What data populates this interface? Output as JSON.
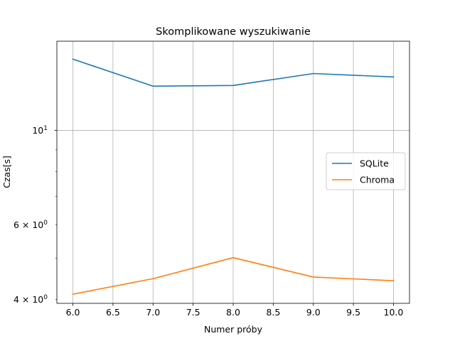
{
  "chart_data": {
    "type": "line",
    "title": "Skomplikowane wyszukiwanie",
    "xlabel": "Numer próby",
    "ylabel": "Czas[s]",
    "x": [
      6,
      7,
      8,
      9,
      10
    ],
    "series": [
      {
        "name": "SQLite",
        "values": [
          14.7,
          12.7,
          12.75,
          13.6,
          13.35
        ],
        "color": "#1f77b4"
      },
      {
        "name": "Chroma",
        "values": [
          4.12,
          4.48,
          5.02,
          4.52,
          4.43
        ],
        "color": "#ff7f0e"
      }
    ],
    "xlim": [
      5.8,
      10.2
    ],
    "ylim": [
      3.92,
      16.2
    ],
    "yscale": "log",
    "xticks": [
      {
        "value": 6,
        "label": "6.0"
      },
      {
        "value": 6.5,
        "label": "6.5"
      },
      {
        "value": 7,
        "label": "7.0"
      },
      {
        "value": 7.5,
        "label": "7.5"
      },
      {
        "value": 8,
        "label": "8.0"
      },
      {
        "value": 8.5,
        "label": "8.5"
      },
      {
        "value": 9,
        "label": "9.0"
      },
      {
        "value": 9.5,
        "label": "9.5"
      },
      {
        "value": 10,
        "label": "10.0"
      }
    ],
    "yticks_major": [
      {
        "value": 10,
        "label": "10",
        "sup": "1"
      }
    ],
    "yticks_minor": [
      {
        "value": 4,
        "label": "4 × 10",
        "sup": "0"
      },
      {
        "value": 6,
        "label": "6 × 10",
        "sup": "0"
      }
    ],
    "yticks_minor_unlabeled": [
      5,
      7,
      8,
      9
    ],
    "grid": true,
    "legend_position": "center-right"
  }
}
